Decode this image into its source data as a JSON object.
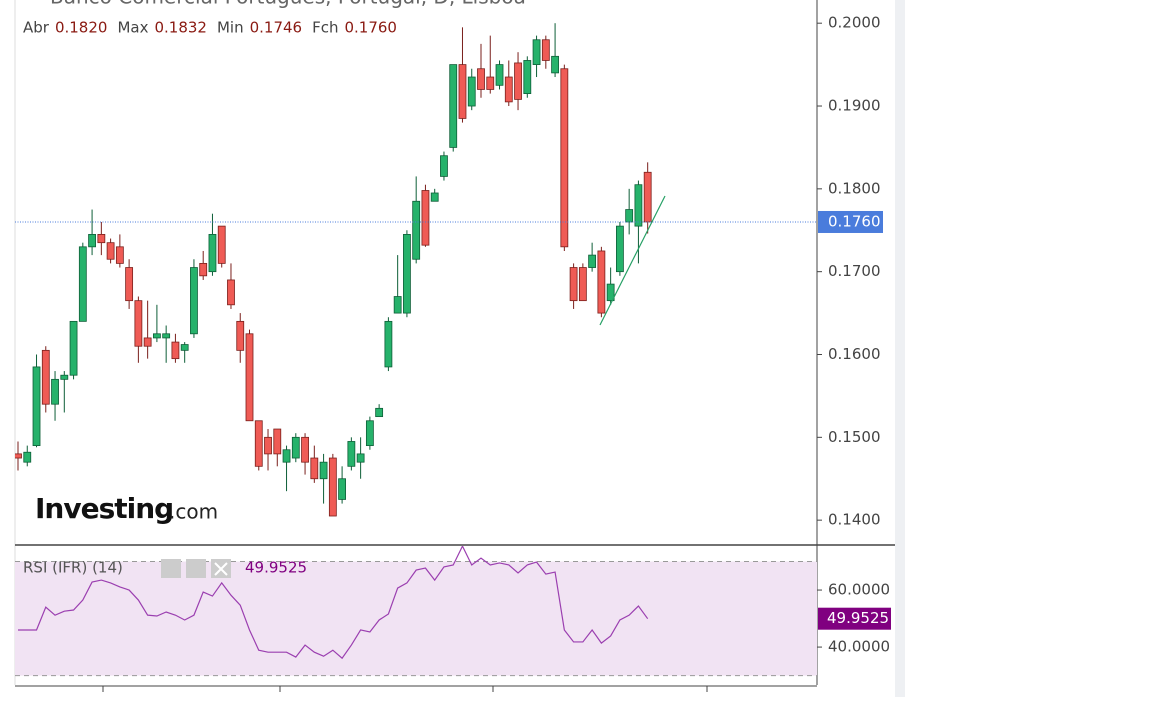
{
  "chart_data": {
    "type": "candlestick",
    "title": "Banco Comercial Português, Portugal, D, Lisboa",
    "ohlc_header": [
      {
        "name": "Abr",
        "value": 0.182,
        "label": "0.1820"
      },
      {
        "name": "Max",
        "value": 0.1832,
        "label": "0.1832"
      },
      {
        "name": "Min",
        "value": 0.1746,
        "label": "0.1746"
      },
      {
        "name": "Fch",
        "value": 0.176,
        "label": "0.1760"
      }
    ],
    "up_color": "#26b26b",
    "down_color": "#ef5b55",
    "open": [
      0.148,
      0.147,
      0.149,
      0.1605,
      0.154,
      0.157,
      0.1575,
      0.164,
      0.173,
      0.1745,
      0.1735,
      0.173,
      0.1705,
      0.1665,
      0.162,
      0.162,
      0.162,
      0.1615,
      0.1605,
      0.1625,
      0.171,
      0.17,
      0.1755,
      0.169,
      0.164,
      0.1625,
      0.152,
      0.15,
      0.151,
      0.147,
      0.1475,
      0.15,
      0.1475,
      0.145,
      0.1475,
      0.1425,
      0.1465,
      0.147,
      0.149,
      0.1525,
      0.1585,
      0.165,
      0.165,
      0.1715,
      0.1798,
      0.1785,
      0.1815,
      0.185,
      0.195,
      0.19,
      0.1945,
      0.1935,
      0.1925,
      0.1935,
      0.1952,
      0.1915,
      0.195,
      0.198,
      0.194,
      0.1945,
      0.1705,
      0.1705,
      0.1705,
      0.1725,
      0.1665,
      0.17,
      0.176,
      0.1755,
      0.182
    ],
    "high": [
      0.1495,
      0.149,
      0.16,
      0.161,
      0.158,
      0.158,
      0.164,
      0.1735,
      0.1775,
      0.176,
      0.174,
      0.1745,
      0.1715,
      0.167,
      0.1665,
      0.166,
      0.1635,
      0.1625,
      0.1615,
      0.1715,
      0.1725,
      0.177,
      0.1755,
      0.171,
      0.165,
      0.163,
      0.152,
      0.151,
      0.151,
      0.149,
      0.1505,
      0.1505,
      0.149,
      0.148,
      0.148,
      0.1465,
      0.15,
      0.15,
      0.1525,
      0.154,
      0.1645,
      0.172,
      0.175,
      0.1815,
      0.1805,
      0.18,
      0.1845,
      0.195,
      0.1995,
      0.1945,
      0.1975,
      0.1985,
      0.1955,
      0.1955,
      0.1965,
      0.196,
      0.1985,
      0.1985,
      0.2,
      0.195,
      0.171,
      0.171,
      0.1735,
      0.173,
      0.1705,
      0.176,
      0.18,
      0.181,
      0.1832
    ],
    "low": [
      0.146,
      0.1465,
      0.1488,
      0.153,
      0.152,
      0.153,
      0.157,
      0.164,
      0.172,
      0.172,
      0.171,
      0.1705,
      0.1655,
      0.159,
      0.1595,
      0.1615,
      0.159,
      0.159,
      0.159,
      0.162,
      0.169,
      0.1695,
      0.1705,
      0.1655,
      0.159,
      0.152,
      0.146,
      0.146,
      0.1465,
      0.1435,
      0.147,
      0.1455,
      0.1445,
      0.142,
      0.1405,
      0.142,
      0.146,
      0.145,
      0.1485,
      0.1525,
      0.158,
      0.165,
      0.1645,
      0.171,
      0.173,
      0.1785,
      0.181,
      0.1845,
      0.188,
      0.1895,
      0.191,
      0.1915,
      0.192,
      0.19,
      0.1895,
      0.191,
      0.1935,
      0.1945,
      0.1935,
      0.1725,
      0.1655,
      0.1665,
      0.17,
      0.1645,
      0.166,
      0.1695,
      0.1745,
      0.171,
      0.1746
    ],
    "close": [
      0.1475,
      0.1482,
      0.1585,
      0.154,
      0.157,
      0.1575,
      0.164,
      0.173,
      0.1745,
      0.1735,
      0.1715,
      0.171,
      0.1665,
      0.161,
      0.161,
      0.1625,
      0.1625,
      0.1595,
      0.1612,
      0.1705,
      0.1695,
      0.1745,
      0.171,
      0.166,
      0.1605,
      0.152,
      0.1465,
      0.148,
      0.148,
      0.1485,
      0.15,
      0.147,
      0.145,
      0.147,
      0.1405,
      0.145,
      0.1495,
      0.148,
      0.152,
      0.1535,
      0.164,
      0.167,
      0.1745,
      0.1785,
      0.1732,
      0.1795,
      0.184,
      0.195,
      0.1885,
      0.1935,
      0.192,
      0.192,
      0.195,
      0.1905,
      0.1908,
      0.1955,
      0.198,
      0.1955,
      0.196,
      0.173,
      0.1665,
      0.1665,
      0.172,
      0.165,
      0.1685,
      0.1755,
      0.1775,
      0.1805,
      0.176
    ],
    "ylim": [
      0.137,
      0.2028
    ],
    "yticks": [
      {
        "value": 0.2,
        "label": "0.2000"
      },
      {
        "value": 0.19,
        "label": "0.1900"
      },
      {
        "value": 0.18,
        "label": "0.1800"
      },
      {
        "value": 0.17,
        "label": "0.1700"
      },
      {
        "value": 0.16,
        "label": "0.1600"
      },
      {
        "value": 0.15,
        "label": "0.1500"
      },
      {
        "value": 0.14,
        "label": "0.1400"
      }
    ],
    "last_price": {
      "value": 0.176,
      "label": "0.1760",
      "color": "#4a7cdc"
    },
    "watermark": {
      "brand": "Investing",
      "suffix": ".com"
    },
    "rsi": {
      "name": "RSI (IFR) (14)",
      "color": "#9b3fb0",
      "label_color": "#800080",
      "values": [
        46.0,
        46.0,
        46.0,
        54.0,
        51.2,
        52.6,
        53.0,
        56.5,
        62.8,
        63.5,
        62.5,
        61.1,
        60.0,
        56.5,
        51.2,
        50.9,
        52.3,
        51.2,
        49.5,
        51.2,
        59.3,
        57.9,
        62.5,
        58.2,
        54.7,
        46.0,
        38.9,
        38.2,
        38.2,
        38.2,
        36.5,
        40.7,
        38.2,
        36.8,
        38.9,
        36.1,
        40.7,
        46.0,
        45.3,
        49.5,
        51.6,
        60.7,
        62.5,
        67.0,
        67.7,
        63.5,
        68.1,
        68.8,
        75.4,
        68.8,
        71.2,
        68.8,
        69.5,
        68.8,
        66.0,
        68.8,
        69.8,
        65.6,
        66.3,
        46.0,
        41.8,
        41.8,
        46.0,
        41.4,
        43.9,
        49.5,
        51.2,
        54.4,
        49.9525
      ],
      "last": {
        "value": 49.9525,
        "label": "49.9525"
      },
      "ylim": [
        26.7,
        75.8
      ],
      "yticks": [
        {
          "value": 60,
          "label": "60.0000"
        },
        {
          "value": 40,
          "label": "40.0000"
        }
      ],
      "bands": [
        30,
        70
      ]
    }
  }
}
